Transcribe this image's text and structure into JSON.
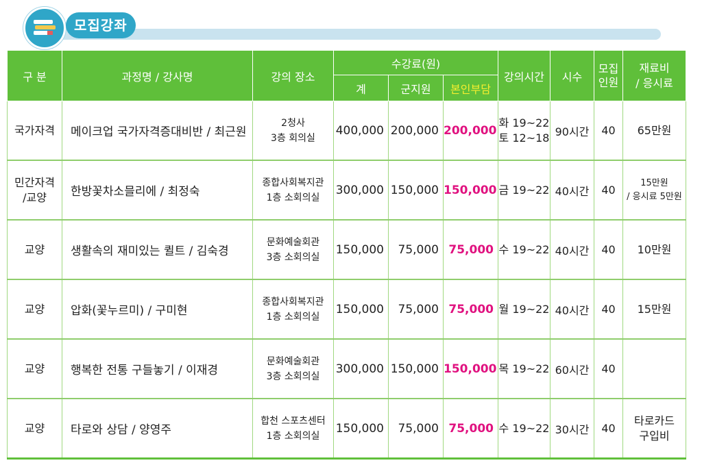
{
  "header": {
    "title": "모집강좌",
    "icon": "books-icon"
  },
  "table": {
    "headers": {
      "category": "구 분",
      "course": "과정명 / 강사명",
      "place": "강의 장소",
      "fee": "수강료(원)",
      "total": "계",
      "county": "군지원",
      "self": "본인부담",
      "time": "강의시간",
      "hours": "시수",
      "capacity_1": "모집",
      "capacity_2": "인원",
      "material_1": "재료비",
      "material_2": "/ 응시료"
    },
    "rows": [
      {
        "category_1": "국가자격",
        "category_2": "",
        "course": "메이크업 국가자격증대비반 / 최근원",
        "place_1": "2청사",
        "place_2": "3층 회의실",
        "total": "400,000",
        "county": "200,000",
        "self": "200,000",
        "time_1": "화 19~22",
        "time_2": "토 12~18",
        "hours": "90시간",
        "capacity": "40",
        "material_1": "65만원",
        "material_2": ""
      },
      {
        "category_1": "민간자격",
        "category_2": "/교양",
        "course": "한방꽃차소믈리에 / 최정숙",
        "place_1": "종합사회복지관",
        "place_2": "1층 소회의실",
        "total": "300,000",
        "county": "150,000",
        "self": "150,000",
        "time_1": "금 19~22",
        "time_2": "",
        "hours": "40시간",
        "capacity": "40",
        "material_1": "15만원",
        "material_2": "/ 응시료 5만원"
      },
      {
        "category_1": "교양",
        "category_2": "",
        "course": "생활속의 재미있는 퀼트 / 김숙경",
        "place_1": "문화예술회관",
        "place_2": "3층 소회의실",
        "total": "150,000",
        "county": "75,000",
        "self": "75,000",
        "time_1": "수 19~22",
        "time_2": "",
        "hours": "40시간",
        "capacity": "40",
        "material_1": "10만원",
        "material_2": ""
      },
      {
        "category_1": "교양",
        "category_2": "",
        "course": "압화(꽃누르미) / 구미현",
        "place_1": "종합사회복지관",
        "place_2": "1층 소회의실",
        "total": "150,000",
        "county": "75,000",
        "self": "75,000",
        "time_1": "월 19~22",
        "time_2": "",
        "hours": "40시간",
        "capacity": "40",
        "material_1": "15만원",
        "material_2": ""
      },
      {
        "category_1": "교양",
        "category_2": "",
        "course": "행복한 전통 구들놓기 / 이재경",
        "place_1": "문화예술회관",
        "place_2": "3층 소회의실",
        "total": "300,000",
        "county": "150,000",
        "self": "150,000",
        "time_1": "목 19~22",
        "time_2": "",
        "hours": "60시간",
        "capacity": "40",
        "material_1": "",
        "material_2": ""
      },
      {
        "category_1": "교양",
        "category_2": "",
        "course": "타로와 상담 / 양영주",
        "place_1": "합천 스포츠센터",
        "place_2": "1층 소회의실",
        "total": "150,000",
        "county": "75,000",
        "self": "75,000",
        "time_1": "수 19~22",
        "time_2": "",
        "hours": "30시간",
        "capacity": "40",
        "material_1": "타로카드",
        "material_2": "구입비"
      }
    ]
  },
  "colors": {
    "header_green": "#5fbf3a",
    "title_blue": "#2fa6c8",
    "self_pay_pink": "#e0117f",
    "self_pay_header_yellow": "#f5ee2f"
  }
}
